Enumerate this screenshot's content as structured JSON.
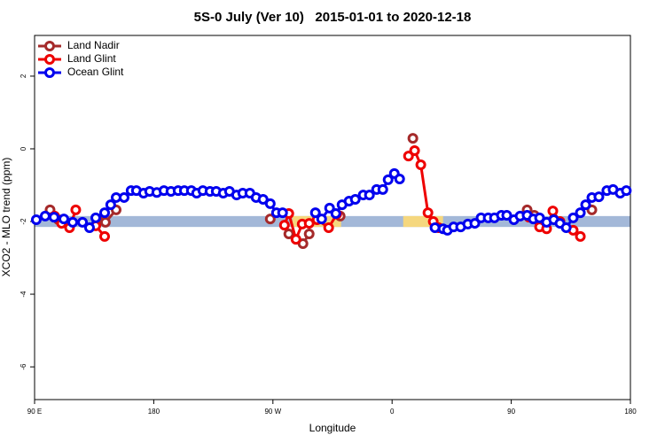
{
  "chart_data": {
    "type": "line",
    "title": "5S-0 July (Ver 10)   2015-01-01 to 2020-12-18",
    "xlabel": "Longitude",
    "ylabel": "XCO2 - MLO trend (ppm)",
    "xlim": [
      90,
      540
    ],
    "ylim": [
      -6.9,
      3.12
    ],
    "xticks": [
      {
        "value": 90,
        "label": "90 E"
      },
      180,
      {
        "value": 270,
        "label": "90 W"
      },
      {
        "value": 360,
        "label": "0"
      },
      {
        "value": 450,
        "label": "90"
      },
      {
        "value": 540,
        "label": "180"
      }
    ],
    "yticks": [
      -6,
      -4,
      -2,
      0,
      2
    ],
    "legend": "top-left",
    "band": {
      "ylim": [
        -2.15,
        -1.85
      ],
      "color": "#a3b8d8"
    },
    "highlights": {
      "color": "#f5d77e",
      "ranges": [
        [
          284.7,
          321.5
        ],
        [
          368.4,
          398.5
        ]
      ]
    },
    "series": [
      {
        "name": "Land Nadir",
        "color": "#a52a2a",
        "x": [
          101.7,
          108.1,
          null,
          137.5,
          143.5,
          151.6,
          null,
          268.0,
          null,
          282.0,
          292.7,
          297.4,
          null,
          320.8,
          null,
          375.7,
          null,
          462.0,
          467.4,
          null,
          510.9
        ],
        "values": [
          -1.68,
          -1.95,
          null,
          -1.95,
          -2.02,
          -1.68,
          null,
          -1.93,
          null,
          -2.34,
          -2.61,
          -2.34,
          null,
          -1.85,
          null,
          0.29,
          null,
          -1.68,
          -1.83,
          null,
          -1.68
        ]
      },
      {
        "name": "Land Glint",
        "color": "#ee0000",
        "x": [
          105.1,
          110.4,
          116.4,
          121.1,
          null,
          136.2,
          142.9,
          null,
          278.7,
          282.0,
          287.4,
          292.1,
          297.4,
          303.4,
          312.1,
          318.2,
          null,
          372.4,
          377.0,
          381.7,
          387.1,
          391.1,
          395.1,
          null,
          463.4,
          471.4,
          476.7,
          481.4,
          486.8,
          496.8,
          502.2
        ],
        "values": [
          -1.85,
          -2.05,
          -2.17,
          -1.68,
          null,
          -2.12,
          -2.41,
          null,
          -2.1,
          -1.78,
          -2.49,
          -2.07,
          -2.05,
          -1.95,
          -2.17,
          -1.8,
          null,
          -0.2,
          -0.05,
          -0.44,
          -1.76,
          -2.0,
          -2.17,
          null,
          -1.88,
          -2.15,
          -2.2,
          -1.71,
          -2.0,
          -2.24,
          -2.41
        ]
      },
      {
        "name": "Ocean Glint",
        "color": "#0000ee",
        "x": [
          91.3,
          98.0,
          104.7,
          112.1,
          118.8,
          126.2,
          131.5,
          136.2,
          142.9,
          147.5,
          151.6,
          157.6,
          162.9,
          166.9,
          172.3,
          176.9,
          182.3,
          187.7,
          193.0,
          198.4,
          203.1,
          208.4,
          212.4,
          217.1,
          222.5,
          227.2,
          232.5,
          237.2,
          242.6,
          247.2,
          252.6,
          257.3,
          262.6,
          268.0,
          272.7,
          277.3,
          null,
          302.1,
          306.8,
          312.8,
          317.5,
          322.2,
          327.5,
          332.2,
          338.2,
          342.9,
          348.3,
          353.0,
          357.0,
          361.7,
          365.7,
          null,
          392.4,
          398.5,
          401.8,
          406.5,
          411.8,
          417.2,
          422.5,
          427.2,
          432.6,
          437.3,
          442.6,
          446.6,
          452.0,
          456.7,
          462.0,
          466.7,
          471.4,
          476.7,
          482.1,
          486.8,
          491.5,
          496.8,
          502.2,
          506.2,
          510.9,
          516.2,
          522.2,
          526.9,
          532.3,
          536.9
        ],
        "values": [
          -1.95,
          -1.85,
          -1.88,
          -1.93,
          -2.02,
          -2.02,
          -2.17,
          -1.9,
          -1.76,
          -1.54,
          -1.34,
          -1.34,
          -1.15,
          -1.15,
          -1.22,
          -1.17,
          -1.2,
          -1.15,
          -1.17,
          -1.15,
          -1.15,
          -1.15,
          -1.22,
          -1.15,
          -1.17,
          -1.17,
          -1.22,
          -1.17,
          -1.27,
          -1.22,
          -1.22,
          -1.34,
          -1.39,
          -1.51,
          -1.76,
          -1.76,
          null,
          -1.76,
          -1.93,
          -1.63,
          -1.78,
          -1.54,
          -1.44,
          -1.39,
          -1.27,
          -1.27,
          -1.12,
          -1.12,
          -0.85,
          -0.68,
          -0.83,
          null,
          -2.17,
          -2.2,
          -2.24,
          -2.15,
          -2.15,
          -2.07,
          -2.05,
          -1.9,
          -1.9,
          -1.9,
          -1.83,
          -1.83,
          -1.95,
          -1.85,
          -1.83,
          -1.93,
          -1.9,
          -2.02,
          -1.95,
          -2.05,
          -2.17,
          -1.9,
          -1.76,
          -1.54,
          -1.34,
          -1.32,
          -1.15,
          -1.12,
          -1.22,
          -1.15
        ]
      }
    ]
  }
}
